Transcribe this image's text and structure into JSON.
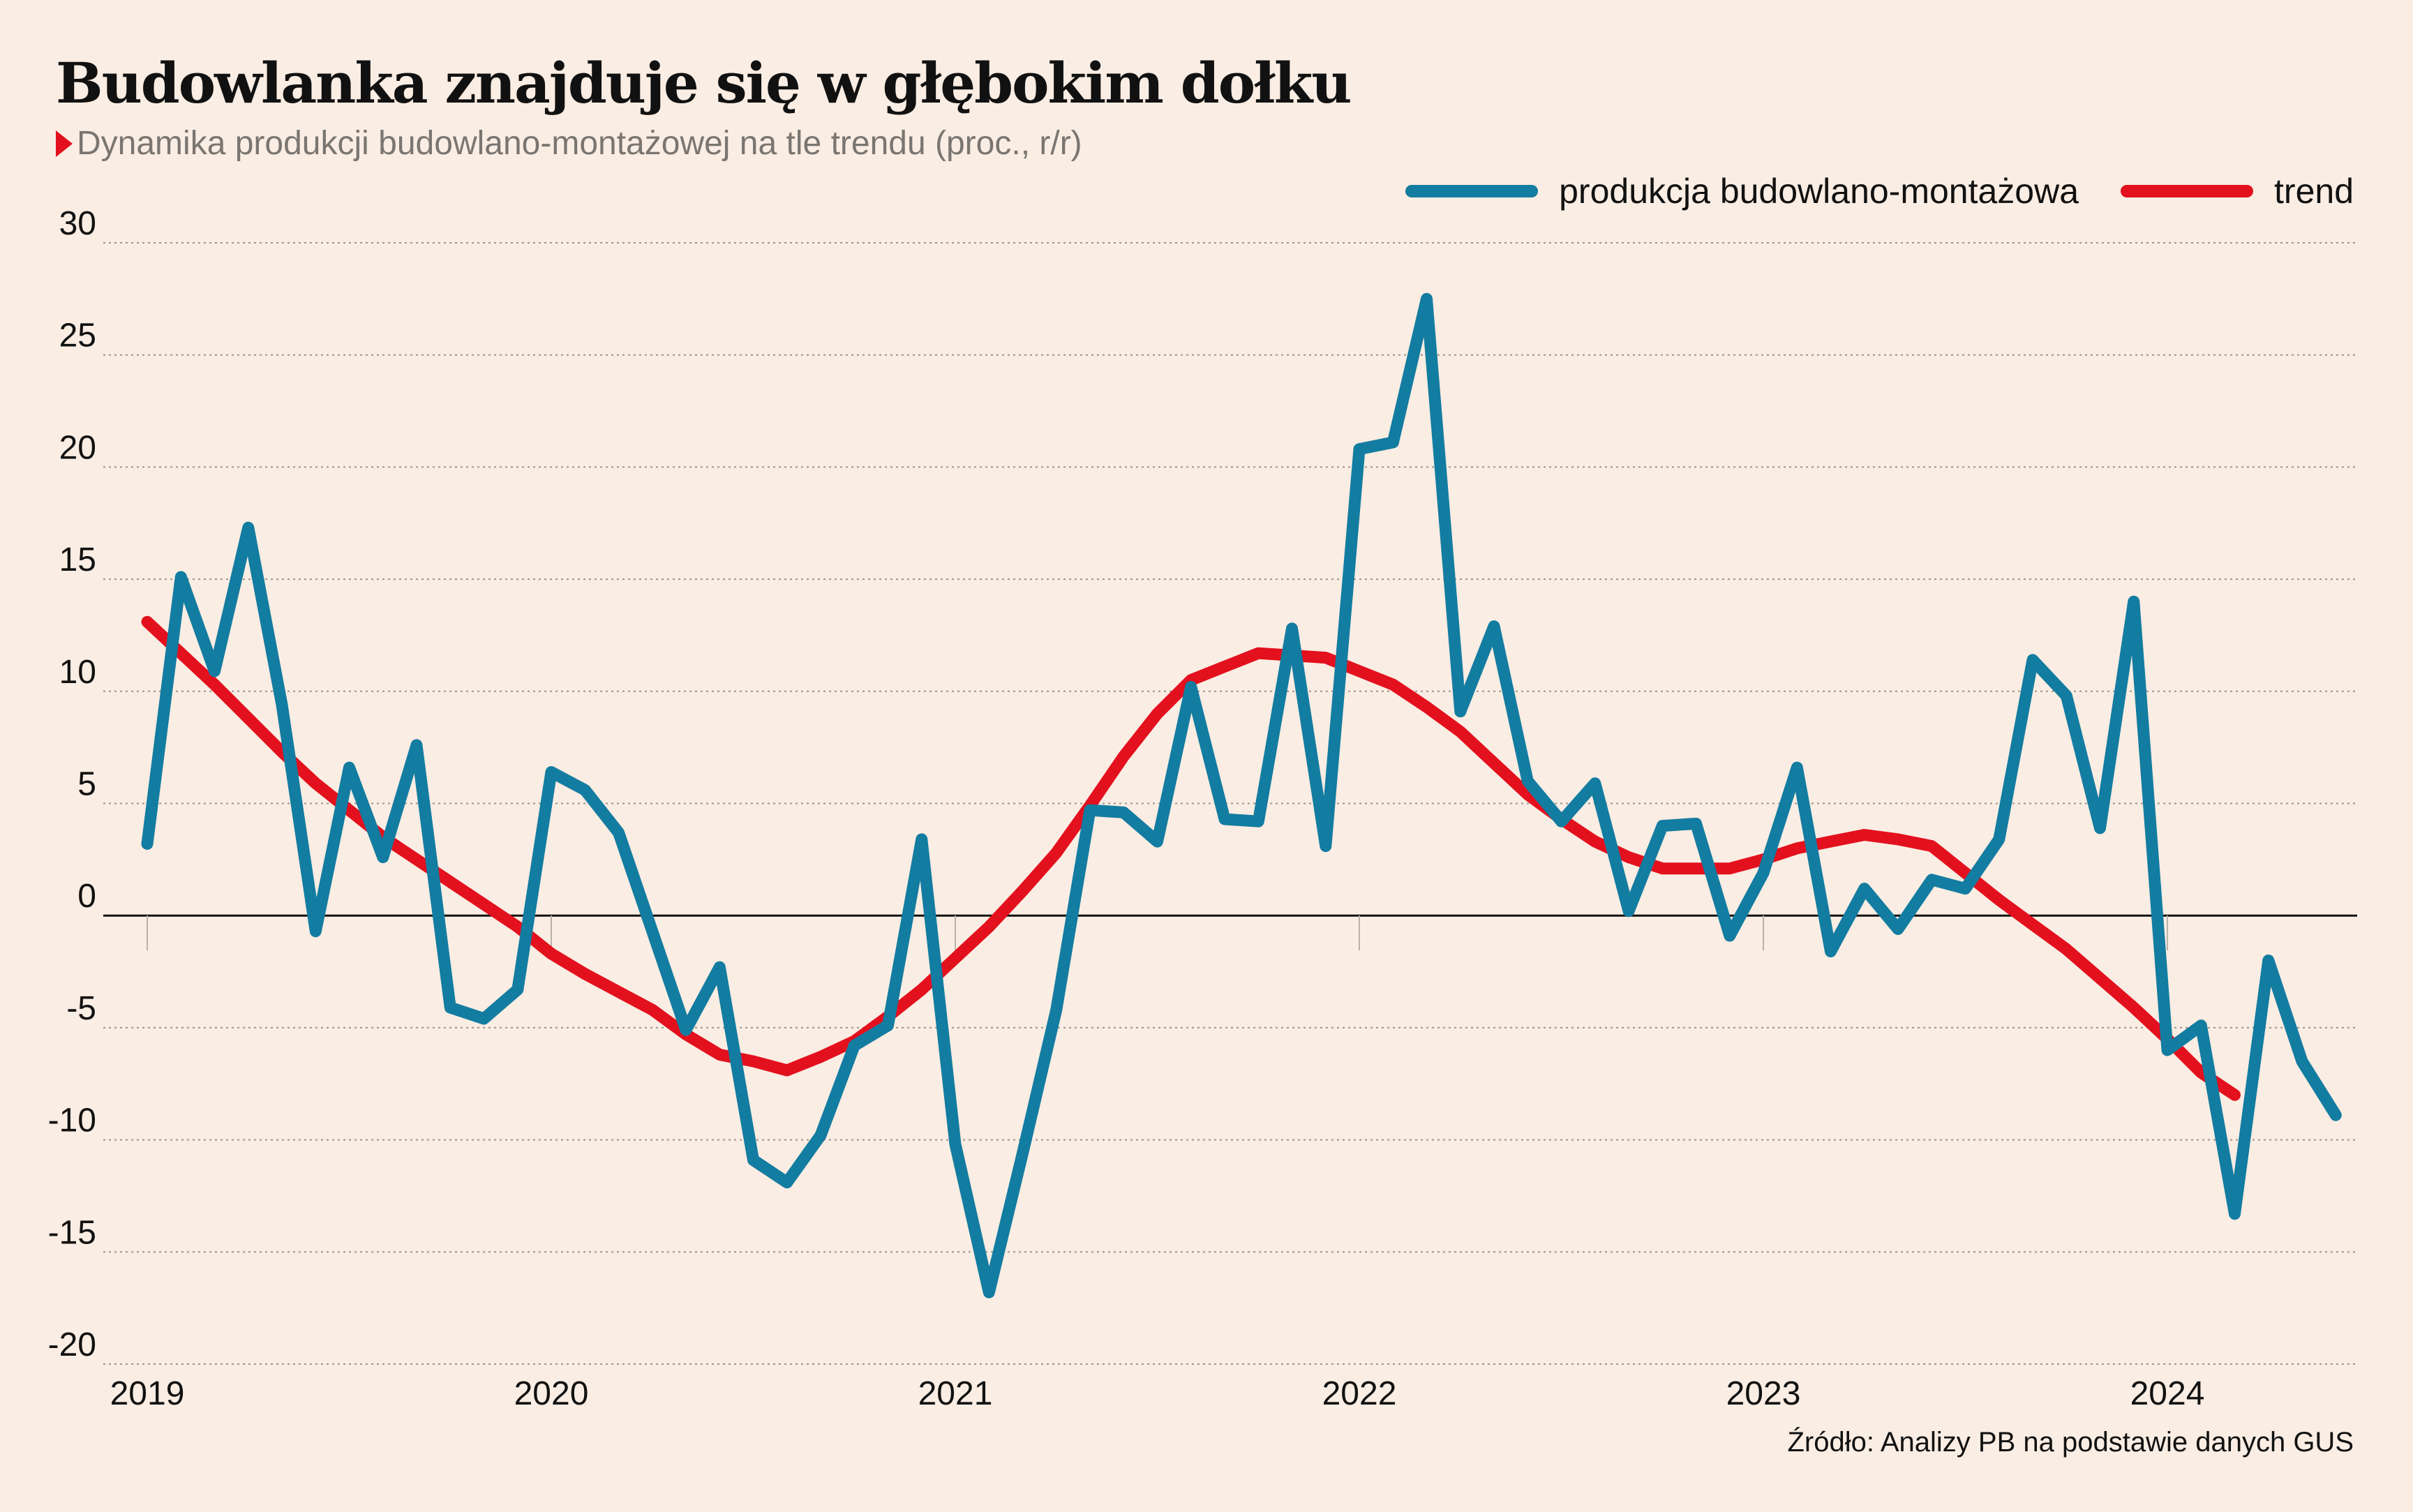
{
  "title": "Budowlanka znajduje się w głębokim dołku",
  "subtitle": "Dynamika produkcji budowlano-montażowej na tle trendu (proc., r/r)",
  "source": "Źródło: Analizy PB na podstawie danych GUS",
  "colors": {
    "background": "#faede3",
    "production": "#137ca1",
    "trend": "#e3101e",
    "subtitle_marker": "#e3101e"
  },
  "chart_data": {
    "type": "line",
    "title": "Budowlanka znajduje się w głębokim dołku",
    "subtitle": "Dynamika produkcji budowlano-montażowej na tle trendu (proc., r/r)",
    "xlabel": "",
    "ylabel": "",
    "ylim": [
      -20,
      30
    ],
    "yticks": [
      30,
      25,
      20,
      15,
      10,
      5,
      0,
      -5,
      -10,
      -15,
      -20
    ],
    "ytick_labels": [
      "30",
      "25",
      "20",
      "15",
      "10",
      "5",
      "0",
      "-5",
      "-10",
      "-15",
      "-20"
    ],
    "xtick_labels": [
      "2019",
      "2020",
      "2021",
      "2022",
      "2023",
      "2024"
    ],
    "grid": "horizontal dotted",
    "legend_position": "top-right",
    "series": [
      {
        "name": "produkcja budowlano-montażowa",
        "color": "#137ca1",
        "values": [
          3.2,
          15.1,
          10.9,
          17.3,
          9.4,
          -0.7,
          6.6,
          2.6,
          7.6,
          -4.1,
          -4.6,
          -3.3,
          6.4,
          5.6,
          3.7,
          -0.7,
          -5.1,
          -2.3,
          -10.9,
          -11.9,
          -9.8,
          -5.8,
          -4.9,
          3.4,
          -10.2,
          -16.8,
          -10.6,
          -4.2,
          4.7,
          4.6,
          3.3,
          10.2,
          4.3,
          4.2,
          12.8,
          3.1,
          20.8,
          21.1,
          27.5,
          9.1,
          12.9,
          6.0,
          4.2,
          5.9,
          0.2,
          4.0,
          4.1,
          -0.9,
          1.9,
          6.6,
          -1.6,
          1.2,
          -0.6,
          1.6,
          1.2,
          3.4,
          11.4,
          9.8,
          3.9,
          14.0,
          -6.0,
          -4.9,
          -13.3,
          -2.0,
          -6.5,
          -8.9
        ]
      },
      {
        "name": "trend",
        "color": "#e3101e",
        "values": [
          13.1,
          11.7,
          10.3,
          8.8,
          7.3,
          5.9,
          4.7,
          3.5,
          2.5,
          1.5,
          0.5,
          -0.5,
          -1.7,
          -2.6,
          -3.4,
          -4.2,
          -5.3,
          -6.2,
          -6.5,
          -6.9,
          -6.3,
          -5.6,
          -4.5,
          -3.3,
          -1.9,
          -0.5,
          1.1,
          2.8,
          4.9,
          7.1,
          9.0,
          10.5,
          11.1,
          11.7,
          11.6,
          11.5,
          10.9,
          10.3,
          9.3,
          8.2,
          6.8,
          5.4,
          4.3,
          3.3,
          2.6,
          2.1,
          2.1,
          2.1,
          2.5,
          3.0,
          3.3,
          3.6,
          3.4,
          3.1,
          1.9,
          0.7,
          -0.4,
          -1.5,
          -2.8,
          -4.1,
          -5.5,
          -7.0,
          -8.0
        ]
      }
    ]
  }
}
